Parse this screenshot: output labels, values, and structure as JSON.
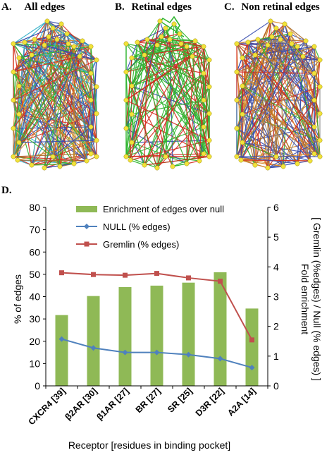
{
  "panels": {
    "a": {
      "letter": "A.",
      "title": "All edges"
    },
    "b": {
      "letter": "B.",
      "title": "Retinal edges"
    },
    "c": {
      "letter": "C.",
      "title": "Non retinal edges"
    },
    "d": {
      "letter": "D."
    }
  },
  "colors": {
    "bar": "#8fb956",
    "null_line": "#4f81bd",
    "gremlin_line": "#c0504d",
    "node": "#f2e33a",
    "edge_green": "#2fb52f",
    "edge_red": "#d42a1e",
    "edge_blue": "#3a4fb0",
    "edge_orange": "#d98a2a",
    "edge_brown": "#a86a2a",
    "edge_cyan": "#33b0c8",
    "edge_gray": "#8a8a8a"
  },
  "chart_data": {
    "type": "bar",
    "categories": [
      "CXCR4 [39]",
      "β2AR [30]",
      "β1AR [27]",
      "BR [27]",
      "SR [25]",
      "D3R [22]",
      "A2A [14]"
    ],
    "series": [
      {
        "name": "Enrichment of edges over null",
        "kind": "bar",
        "axis": "right",
        "values": [
          2.38,
          3.02,
          3.32,
          3.37,
          3.47,
          3.82,
          2.6
        ]
      },
      {
        "name": "NULL (% edges)",
        "kind": "line",
        "marker": "diamond",
        "axis": "left",
        "values": [
          21,
          17,
          15,
          15,
          14,
          12.2,
          8.2
        ]
      },
      {
        "name": "Gremlin (% edges)",
        "kind": "line",
        "marker": "square",
        "axis": "left",
        "values": [
          50.7,
          49.9,
          49.6,
          50.4,
          48.4,
          46.9,
          20.6
        ]
      }
    ],
    "xlabel": "Receptor [residues in binding pocket]",
    "ylabel": "% of edges",
    "y2label_line1": "Fold enrichment",
    "y2label_line2": "[ Gremlin (%edges) / Null (% edges) ]",
    "ylim": [
      0,
      80
    ],
    "y2lim": [
      0,
      6
    ],
    "yticks": [
      "0",
      "10",
      "20",
      "30",
      "40",
      "50",
      "60",
      "70",
      "80"
    ],
    "y2ticks": [
      "0",
      "1",
      "2",
      "3",
      "4",
      "5",
      "6"
    ],
    "legend_position": "top-left",
    "grid": false
  }
}
